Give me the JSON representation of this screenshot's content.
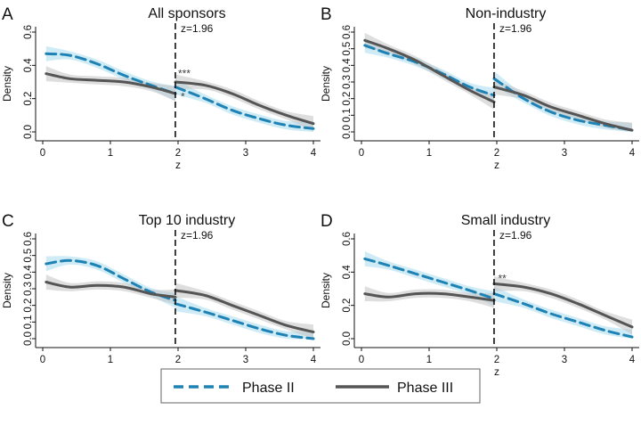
{
  "chart_data": [
    {
      "type": "line",
      "letter": "A",
      "title": "All sponsors",
      "xlabel": "z",
      "ylabel": "Density",
      "xlim": [
        0,
        4
      ],
      "ylim": [
        0,
        0.6
      ],
      "xticks": [
        "0",
        "1",
        "2",
        "3",
        "4"
      ],
      "yticks": [
        "0.0",
        "0.2",
        "0.4",
        "0.6"
      ],
      "cutoff": 1.96,
      "cutoff_label": "z=1.96",
      "significance": [
        {
          "label": "***",
          "x": 2.0,
          "y": 0.33
        },
        {
          "label": "*",
          "x": 2.04,
          "y": 0.19
        }
      ],
      "series": [
        {
          "name": "Phase II",
          "left": {
            "x": [
              0.05,
              0.4,
              0.8,
              1.2,
              1.6,
              1.96
            ],
            "y": [
              0.47,
              0.46,
              0.41,
              0.34,
              0.28,
              0.23
            ]
          },
          "right": {
            "x": [
              1.96,
              2.4,
              2.8,
              3.2,
              3.6,
              4.0
            ],
            "y": [
              0.27,
              0.2,
              0.13,
              0.08,
              0.04,
              0.02
            ]
          }
        },
        {
          "name": "Phase III",
          "left": {
            "x": [
              0.05,
              0.4,
              0.8,
              1.2,
              1.6,
              1.96
            ],
            "y": [
              0.35,
              0.32,
              0.31,
              0.3,
              0.27,
              0.23
            ]
          },
          "right": {
            "x": [
              1.96,
              2.4,
              2.8,
              3.2,
              3.6,
              4.0
            ],
            "y": [
              0.3,
              0.28,
              0.23,
              0.16,
              0.1,
              0.05
            ]
          }
        }
      ]
    },
    {
      "type": "line",
      "letter": "B",
      "title": "Non-industry",
      "xlabel": "z",
      "ylabel": "Density",
      "xlim": [
        0,
        4
      ],
      "ylim": [
        0,
        0.6
      ],
      "xticks": [
        "0",
        "1",
        "2",
        "3",
        "4"
      ],
      "yticks": [
        "0.0",
        "0.1",
        "0.2",
        "0.3",
        "0.4",
        "0.5",
        "0.6"
      ],
      "cutoff": 1.96,
      "cutoff_label": "z=1.96",
      "significance": [],
      "series": [
        {
          "name": "Phase II",
          "left": {
            "x": [
              0.05,
              0.4,
              0.8,
              1.2,
              1.6,
              1.96
            ],
            "y": [
              0.52,
              0.47,
              0.42,
              0.35,
              0.27,
              0.22
            ]
          },
          "right": {
            "x": [
              1.96,
              2.4,
              2.8,
              3.2,
              3.6,
              4.0
            ],
            "y": [
              0.32,
              0.2,
              0.12,
              0.07,
              0.04,
              0.01
            ]
          }
        },
        {
          "name": "Phase III",
          "left": {
            "x": [
              0.05,
              0.4,
              0.8,
              1.2,
              1.6,
              1.96
            ],
            "y": [
              0.55,
              0.5,
              0.43,
              0.34,
              0.25,
              0.18
            ]
          },
          "right": {
            "x": [
              1.96,
              2.4,
              2.8,
              3.2,
              3.6,
              4.0
            ],
            "y": [
              0.27,
              0.22,
              0.15,
              0.1,
              0.05,
              0.01
            ]
          }
        }
      ]
    },
    {
      "type": "line",
      "letter": "C",
      "title": "Top 10 industry",
      "xlabel": "z",
      "ylabel": "Density",
      "xlim": [
        0,
        4
      ],
      "ylim": [
        0,
        0.6
      ],
      "xticks": [
        "0",
        "1",
        "2",
        "3",
        "4"
      ],
      "yticks": [
        "0.0",
        "0.1",
        "0.2",
        "0.3",
        "0.4",
        "0.5",
        "0.6"
      ],
      "cutoff": 1.96,
      "cutoff_label": "z=1.96",
      "significance": [],
      "series": [
        {
          "name": "Phase II",
          "left": {
            "x": [
              0.05,
              0.4,
              0.8,
              1.2,
              1.6,
              1.96
            ],
            "y": [
              0.45,
              0.47,
              0.44,
              0.36,
              0.28,
              0.23
            ]
          },
          "right": {
            "x": [
              1.96,
              2.4,
              2.8,
              3.2,
              3.6,
              4.0
            ],
            "y": [
              0.21,
              0.16,
              0.11,
              0.06,
              0.02,
              0.0
            ]
          }
        },
        {
          "name": "Phase III",
          "left": {
            "x": [
              0.05,
              0.4,
              0.8,
              1.2,
              1.6,
              1.96
            ],
            "y": [
              0.34,
              0.31,
              0.32,
              0.31,
              0.27,
              0.25
            ]
          },
          "right": {
            "x": [
              1.96,
              2.4,
              2.8,
              3.2,
              3.6,
              4.0
            ],
            "y": [
              0.29,
              0.26,
              0.2,
              0.14,
              0.08,
              0.04
            ]
          }
        }
      ]
    },
    {
      "type": "line",
      "letter": "D",
      "title": "Small industry",
      "xlabel": "z",
      "ylabel": "Density",
      "xlim": [
        0,
        4
      ],
      "ylim": [
        0,
        0.6
      ],
      "xticks": [
        "0",
        "1",
        "2",
        "3",
        "4"
      ],
      "yticks": [
        "0.0",
        "0.2",
        "0.4",
        "0.6"
      ],
      "cutoff": 1.96,
      "cutoff_label": "z=1.96",
      "significance": [
        {
          "label": "**",
          "x": 2.02,
          "y": 0.34
        }
      ],
      "series": [
        {
          "name": "Phase II",
          "left": {
            "x": [
              0.05,
              0.4,
              0.8,
              1.2,
              1.6,
              1.96
            ],
            "y": [
              0.48,
              0.44,
              0.39,
              0.34,
              0.29,
              0.24
            ]
          },
          "right": {
            "x": [
              1.96,
              2.4,
              2.8,
              3.2,
              3.6,
              4.0
            ],
            "y": [
              0.27,
              0.21,
              0.15,
              0.1,
              0.05,
              0.01
            ]
          }
        },
        {
          "name": "Phase III",
          "left": {
            "x": [
              0.05,
              0.4,
              0.8,
              1.2,
              1.6,
              1.96
            ],
            "y": [
              0.27,
              0.25,
              0.27,
              0.27,
              0.25,
              0.23
            ]
          },
          "right": {
            "x": [
              1.96,
              2.4,
              2.8,
              3.2,
              3.6,
              4.0
            ],
            "y": [
              0.33,
              0.31,
              0.27,
              0.21,
              0.14,
              0.07
            ]
          }
        }
      ]
    }
  ],
  "legend": [
    {
      "label": "Phase II",
      "color": "#1f82b4",
      "style": "dashed"
    },
    {
      "label": "Phase III",
      "color": "#555555",
      "style": "solid"
    }
  ],
  "colors": {
    "phase2": "#1f82b4",
    "phase3": "#555555",
    "phase2_band": "#a8dcee",
    "phase3_band": "#c2c2c2",
    "cutoff": "#111111"
  }
}
